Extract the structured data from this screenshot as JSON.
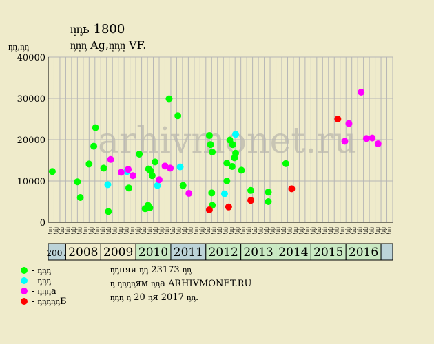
{
  "header": {
    "title": "ᶇᶇь 1800",
    "subtitle": "ᶇᶇᶇ Ag,ᶇᶇᶇ VF.",
    "y_unit": "ᶇᶇ,ᶇᶇ"
  },
  "watermark": "arhivmonet.ru",
  "legend": [
    {
      "label": "- ᶇᶇᶇ",
      "color": "#00ff00"
    },
    {
      "label": "- ᶇᶇᶇ",
      "color": "#00ffff"
    },
    {
      "label": "- ᶇᶇᶇa",
      "color": "#ff00ff"
    },
    {
      "label": "- ᶇᶇᶇᶇᶇБ",
      "color": "#ff0000"
    }
  ],
  "info": {
    "line1": "ᶇᶇняя ᶇᶇ 23173 ᶇᶇ",
    "line2": "ᶇ ᶇᶇᶇᶇям ᶇᶇa ARHIVMONET.RU",
    "line3": "ᶇᶇᶇ ᶇ 20 ᶇя 2017 ᶇᶇ."
  },
  "chart_data": {
    "type": "scatter",
    "ylim": [
      0,
      40000
    ],
    "y_ticks": [
      "0",
      "10000",
      "20000",
      "30000",
      "40000"
    ],
    "x_categories": [
      "ᶇᶇ",
      "ᶇᶇ",
      "ᶇᶇ",
      "ᶇᶇ",
      "ᶇᶇ",
      "ᶇᶇ",
      "ᶇᶇ",
      "ᶇᶇ",
      "ᶇᶇ",
      "ᶇᶇ",
      "ᶇᶇ",
      "ᶇᶇ",
      "ᶇᶇ",
      "ᶇᶇ",
      "ᶇᶇ",
      "ᶇᶇ",
      "ᶇᶇ",
      "ᶇᶇ",
      "ᶇᶇ",
      "ᶇᶇ",
      "ᶇᶇ",
      "ᶇᶇ",
      "ᶇᶇ",
      "ᶇᶇ",
      "ᶇᶇ",
      "ᶇᶇ",
      "ᶇᶇ",
      "ᶇᶇ",
      "ᶇᶇ",
      "ᶇᶇ",
      "ᶇᶇ",
      "ᶇᶇ",
      "ᶇᶇ",
      "ᶇᶇ",
      "ᶇᶇ",
      "ᶇᶇ",
      "ᶇᶇ",
      "ᶇᶇ",
      "ᶇᶇ",
      "ᶇᶇ",
      "ᶇᶇ",
      "ᶇᶇ",
      "ᶇᶇ",
      "ᶇᶇ",
      "ᶇᶇ",
      "ᶇᶇ",
      "ᶇᶇ",
      "ᶇᶇ",
      "ᶇᶇ",
      "ᶇᶇ",
      "ᶇᶇ",
      "ᶇᶇ",
      "ᶇᶇ",
      "ᶇᶇ",
      "ᶇᶇ",
      "ᶇᶇ",
      "ᶇᶇ",
      "ᶇᶇ",
      "ᶇᶇ"
    ],
    "years": [
      {
        "label": "2007",
        "start_period": 0,
        "end_period": 3,
        "color": "#bcd3d8"
      },
      {
        "label": "2008",
        "start_period": 3,
        "end_period": 9,
        "color": "#efebcb"
      },
      {
        "label": "2009",
        "start_period": 9,
        "end_period": 15,
        "color": "#efebcb"
      },
      {
        "label": "2010",
        "start_period": 15,
        "end_period": 21,
        "color": "#c9e9c3"
      },
      {
        "label": "2011",
        "start_period": 21,
        "end_period": 27,
        "color": "#bcd3d8"
      },
      {
        "label": "2012",
        "start_period": 27,
        "end_period": 33,
        "color": "#c9e9c3"
      },
      {
        "label": "2013",
        "start_period": 33,
        "end_period": 39,
        "color": "#c9e9c3"
      },
      {
        "label": "2014",
        "start_period": 39,
        "end_period": 45,
        "color": "#c9e9c3"
      },
      {
        "label": "2015",
        "start_period": 45,
        "end_period": 51,
        "color": "#c9e9c3"
      },
      {
        "label": "2016",
        "start_period": 51,
        "end_period": 57,
        "color": "#c9e9c3"
      },
      {
        "label": "",
        "start_period": 57,
        "end_period": 59,
        "color": "#bcd3d8"
      }
    ],
    "series": [
      {
        "color": "#00ff00",
        "points": [
          {
            "x": 0.2,
            "y": 12300
          },
          {
            "x": 4.5,
            "y": 9800
          },
          {
            "x": 5.0,
            "y": 6000
          },
          {
            "x": 6.5,
            "y": 14100
          },
          {
            "x": 7.3,
            "y": 18400
          },
          {
            "x": 7.6,
            "y": 22900
          },
          {
            "x": 9.0,
            "y": 13100
          },
          {
            "x": 9.8,
            "y": 2600
          },
          {
            "x": 13.3,
            "y": 8300
          },
          {
            "x": 15.1,
            "y": 16500
          },
          {
            "x": 16.1,
            "y": 3300
          },
          {
            "x": 16.6,
            "y": 4100
          },
          {
            "x": 16.9,
            "y": 3500
          },
          {
            "x": 16.7,
            "y": 12900
          },
          {
            "x": 17.0,
            "y": 12500
          },
          {
            "x": 17.3,
            "y": 11300
          },
          {
            "x": 17.8,
            "y": 14600
          },
          {
            "x": 20.2,
            "y": 29900
          },
          {
            "x": 21.7,
            "y": 25800
          },
          {
            "x": 22.6,
            "y": 8900
          },
          {
            "x": 27.1,
            "y": 21000
          },
          {
            "x": 27.3,
            "y": 18800
          },
          {
            "x": 27.6,
            "y": 17000
          },
          {
            "x": 27.5,
            "y": 7100
          },
          {
            "x": 27.6,
            "y": 4100
          },
          {
            "x": 30.1,
            "y": 10000
          },
          {
            "x": 30.1,
            "y": 14300
          },
          {
            "x": 30.6,
            "y": 19900
          },
          {
            "x": 31.1,
            "y": 18800
          },
          {
            "x": 31.4,
            "y": 15600
          },
          {
            "x": 31.6,
            "y": 16700
          },
          {
            "x": 31.0,
            "y": 13500
          },
          {
            "x": 32.6,
            "y": 12600
          },
          {
            "x": 34.2,
            "y": 7700
          },
          {
            "x": 37.2,
            "y": 7300
          },
          {
            "x": 37.2,
            "y": 5000
          },
          {
            "x": 40.2,
            "y": 14200
          }
        ]
      },
      {
        "color": "#00ffff",
        "points": [
          {
            "x": 9.7,
            "y": 9100
          },
          {
            "x": 13.0,
            "y": 12300
          },
          {
            "x": 18.2,
            "y": 8900
          },
          {
            "x": 22.1,
            "y": 13400
          },
          {
            "x": 29.7,
            "y": 6900
          },
          {
            "x": 31.6,
            "y": 21300
          }
        ]
      },
      {
        "color": "#ff00ff",
        "points": [
          {
            "x": 10.2,
            "y": 15200
          },
          {
            "x": 12.0,
            "y": 12100
          },
          {
            "x": 13.2,
            "y": 12800
          },
          {
            "x": 14.0,
            "y": 11300
          },
          {
            "x": 18.5,
            "y": 10300
          },
          {
            "x": 19.5,
            "y": 13600
          },
          {
            "x": 20.4,
            "y": 13100
          },
          {
            "x": 23.6,
            "y": 7000
          },
          {
            "x": 50.3,
            "y": 19600
          },
          {
            "x": 51.0,
            "y": 23900
          },
          {
            "x": 53.1,
            "y": 31500
          },
          {
            "x": 54.0,
            "y": 20300
          },
          {
            "x": 55.0,
            "y": 20400
          },
          {
            "x": 56.0,
            "y": 19000
          }
        ]
      },
      {
        "color": "#ff0000",
        "points": [
          {
            "x": 27.1,
            "y": 3000
          },
          {
            "x": 30.4,
            "y": 3700
          },
          {
            "x": 34.2,
            "y": 5300
          },
          {
            "x": 41.2,
            "y": 8100
          },
          {
            "x": 49.1,
            "y": 25000
          }
        ]
      }
    ]
  }
}
